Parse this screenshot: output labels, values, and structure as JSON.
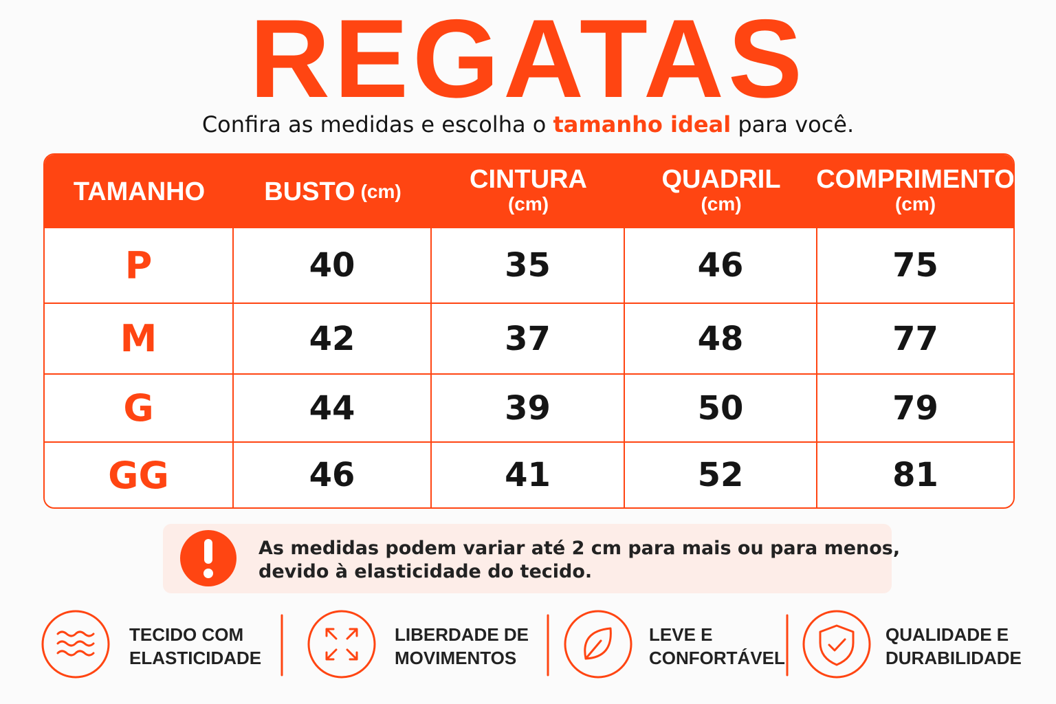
{
  "title": "REGATAS",
  "subtitle": {
    "before": "Confira as medidas e escolha o",
    "highlight": "tamanho ideal",
    "after": "para você."
  },
  "table": {
    "header": [
      {
        "label": "TAMANHO"
      },
      {
        "label": "BUSTO",
        "unit": "(cm)"
      },
      {
        "label": "CINTURA",
        "unit": "(cm)"
      },
      {
        "label": "QUADRIL",
        "unit": "(cm)"
      },
      {
        "label": "COMPRIMENTO",
        "unit": "(cm)"
      }
    ],
    "rows": [
      [
        "P",
        40,
        35,
        46,
        75
      ],
      [
        "M",
        42,
        37,
        48,
        77
      ],
      [
        "G",
        44,
        39,
        50,
        79
      ],
      [
        "GG",
        46,
        41,
        52,
        81
      ]
    ]
  },
  "note": {
    "lines": [
      "As medidas podem variar até 2 cm para mais ou para menos,",
      "devido à elasticidade do tecido."
    ]
  },
  "features": [
    {
      "lines": [
        "TECIDO COM",
        "ELASTICIDADE"
      ]
    },
    {
      "lines": [
        "LIBERDADE DE",
        "MOVIMENTOS"
      ]
    },
    {
      "lines": [
        "LEVE E",
        "CONFORTÁVEL"
      ]
    },
    {
      "lines": [
        "QUALIDADE E",
        "DURABILIDADE"
      ]
    }
  ]
}
